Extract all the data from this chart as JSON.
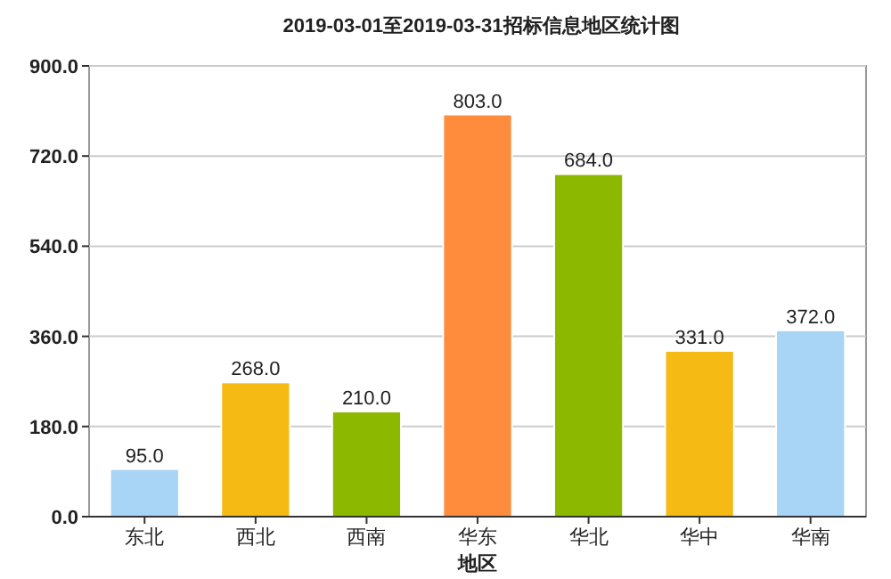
{
  "chart_data": {
    "type": "bar",
    "title": "2019-03-01至2019-03-31招标信息地区统计图",
    "xlabel": "地区",
    "categories": [
      "东北",
      "西北",
      "西南",
      "华东",
      "华北",
      "华中",
      "华南"
    ],
    "values": [
      95,
      268,
      210,
      803,
      684,
      331,
      372
    ],
    "colors": [
      "#a8d4f5",
      "#f5ba14",
      "#8cb800",
      "#ff8c3c",
      "#8cb800",
      "#f5ba14",
      "#a8d4f5"
    ],
    "value_labels": [
      "95.0",
      "268.0",
      "210.0",
      "803.0",
      "684.0",
      "331.0",
      "372.0"
    ],
    "ylim": [
      0,
      900
    ],
    "yticks": [
      {
        "value": 0,
        "label": "0.0"
      },
      {
        "value": 180,
        "label": "180.0"
      },
      {
        "value": 360,
        "label": "360.0"
      },
      {
        "value": 540,
        "label": "540.0"
      },
      {
        "value": 720,
        "label": "720.0"
      },
      {
        "value": 900,
        "label": "900.0"
      }
    ],
    "grid": "y"
  }
}
